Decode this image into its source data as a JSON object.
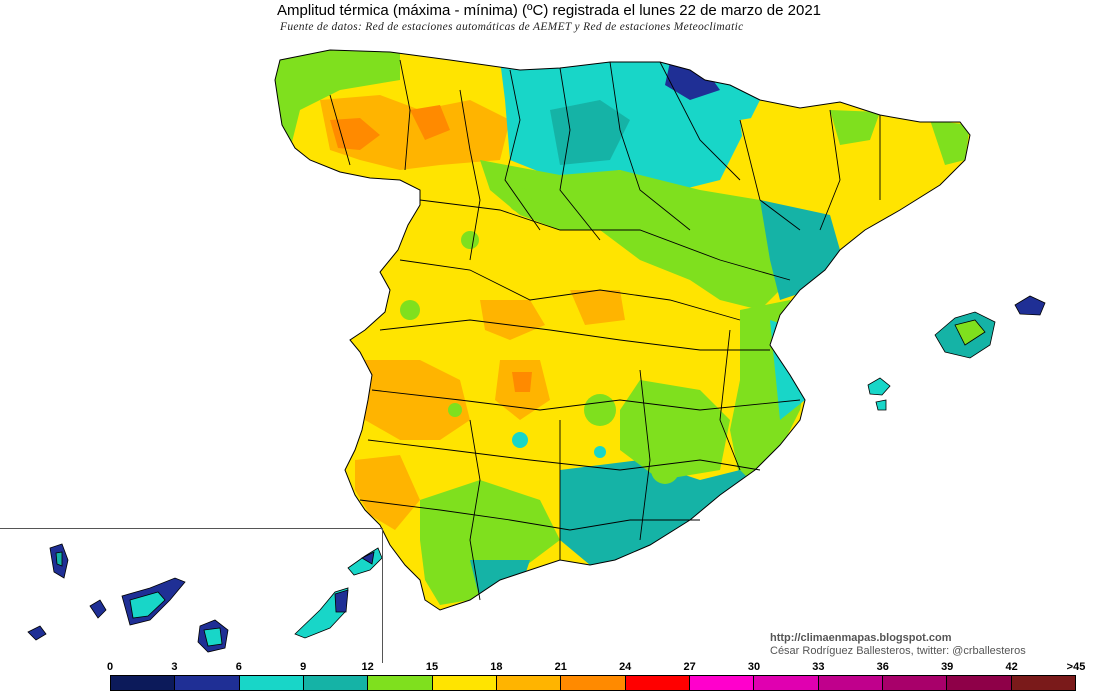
{
  "header": {
    "title": "Amplitud térmica (máxima - mínima) (ºC) registrada el lunes 22 de marzo de 2021",
    "subtitle": "Fuente de datos: Red de estaciones automáticas de AEMET y Red de estaciones Meteoclimatic"
  },
  "credits": {
    "url": "http://climaenmapas.blogspot.com",
    "author": "César Rodríguez Ballesteros, twitter: @crballesteros"
  },
  "legend": {
    "ticks": [
      "0",
      "3",
      "6",
      "9",
      "12",
      "15",
      "18",
      "21",
      "24",
      "27",
      "30",
      "33",
      "36",
      "39",
      "42",
      ">45"
    ],
    "colors": [
      "#0c1a5a",
      "#1f2f95",
      "#18d6c8",
      "#15b3a6",
      "#7fe01e",
      "#ffe400",
      "#ffb400",
      "#ff8a00",
      "#ff0000",
      "#ff00cc",
      "#e000b0",
      "#c0008c",
      "#a8006a",
      "#8e0048",
      "#7a1a1a"
    ]
  },
  "map_colors": {
    "sea": "#ffffff",
    "navy": "#1f2f95",
    "turquoise": "#18d6c8",
    "teal": "#15b3a6",
    "green": "#7fe01e",
    "yellow": "#ffe400",
    "light_orange": "#ffb400",
    "orange": "#ff8a00",
    "border": "#000000"
  }
}
